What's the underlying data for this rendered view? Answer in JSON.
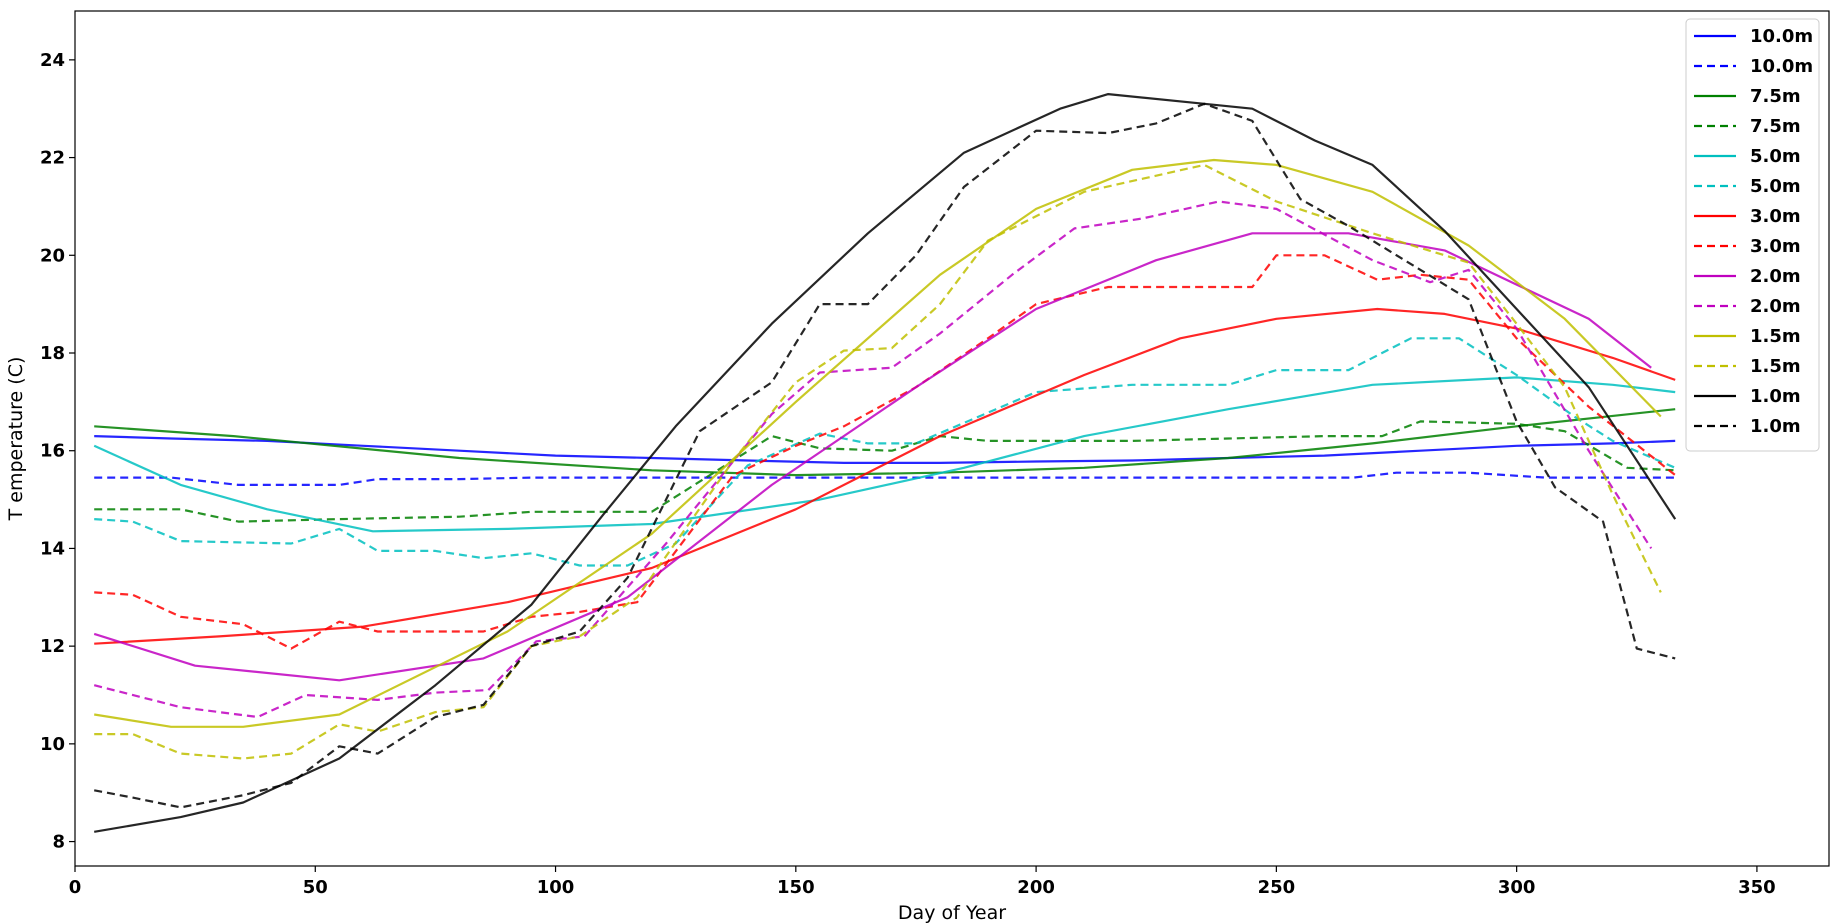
{
  "chart_data": {
    "type": "line",
    "xlabel": "Day of Year",
    "ylabel": "T emperature (C)",
    "xlim": [
      0,
      365
    ],
    "ylim": [
      7.5,
      25
    ],
    "xticks": [
      0,
      50,
      100,
      150,
      200,
      250,
      300,
      350
    ],
    "yticks": [
      8,
      10,
      12,
      14,
      16,
      18,
      20,
      22,
      24
    ],
    "grid": false,
    "legend_position": "top-right",
    "series": [
      {
        "name": "10.0m",
        "color": "#0000ff",
        "style": "solid",
        "x": [
          4,
          20,
          40,
          60,
          80,
          100,
          120,
          140,
          160,
          180,
          200,
          220,
          240,
          260,
          280,
          300,
          320,
          333
        ],
        "y": [
          16.3,
          16.25,
          16.2,
          16.1,
          16.0,
          15.9,
          15.85,
          15.8,
          15.75,
          15.75,
          15.78,
          15.8,
          15.85,
          15.9,
          16.0,
          16.1,
          16.15,
          16.2
        ]
      },
      {
        "name": "10.0m",
        "color": "#0000ff",
        "style": "dashed",
        "x": [
          4,
          20,
          34,
          55,
          63,
          80,
          95,
          120,
          150,
          180,
          210,
          240,
          260,
          266,
          275,
          290,
          306,
          320,
          333
        ],
        "y": [
          15.45,
          15.45,
          15.3,
          15.3,
          15.42,
          15.42,
          15.45,
          15.45,
          15.45,
          15.45,
          15.45,
          15.45,
          15.45,
          15.45,
          15.55,
          15.55,
          15.45,
          15.45,
          15.45
        ]
      },
      {
        "name": "7.5m",
        "color": "#008000",
        "style": "solid",
        "x": [
          4,
          33,
          80,
          120,
          150,
          180,
          210,
          240,
          270,
          300,
          333
        ],
        "y": [
          16.5,
          16.3,
          15.85,
          15.6,
          15.5,
          15.55,
          15.65,
          15.85,
          16.15,
          16.5,
          16.85
        ]
      },
      {
        "name": "7.5m",
        "color": "#008000",
        "style": "dashed",
        "x": [
          4,
          22,
          34,
          55,
          80,
          95,
          120,
          145,
          155,
          170,
          180,
          190,
          220,
          240,
          260,
          272,
          280,
          300,
          310,
          323,
          333
        ],
        "y": [
          14.8,
          14.8,
          14.55,
          14.6,
          14.65,
          14.75,
          14.75,
          16.3,
          16.05,
          16.0,
          16.3,
          16.2,
          16.2,
          16.25,
          16.3,
          16.3,
          16.6,
          16.55,
          16.4,
          15.65,
          15.6
        ]
      },
      {
        "name": "5.0m",
        "color": "#00bfbf",
        "style": "solid",
        "x": [
          4,
          22,
          40,
          62,
          90,
          120,
          155,
          185,
          210,
          240,
          270,
          300,
          320,
          333
        ],
        "y": [
          16.1,
          15.3,
          14.8,
          14.35,
          14.4,
          14.5,
          15.0,
          15.65,
          16.3,
          16.85,
          17.35,
          17.5,
          17.35,
          17.2
        ]
      },
      {
        "name": "5.0m",
        "color": "#00bfbf",
        "style": "dashed",
        "x": [
          4,
          12,
          22,
          45,
          55,
          63,
          75,
          85,
          95,
          105,
          115,
          125,
          140,
          155,
          165,
          175,
          200,
          220,
          240,
          250,
          265,
          278,
          288,
          300,
          312,
          320,
          333
        ],
        "y": [
          14.6,
          14.55,
          14.15,
          14.1,
          14.4,
          13.95,
          13.95,
          13.8,
          13.9,
          13.65,
          13.65,
          14.1,
          15.7,
          16.35,
          16.15,
          16.15,
          17.2,
          17.35,
          17.35,
          17.65,
          17.65,
          18.3,
          18.3,
          17.55,
          16.7,
          16.2,
          15.65
        ]
      },
      {
        "name": "3.0m",
        "color": "#ff0000",
        "style": "solid",
        "x": [
          4,
          30,
          60,
          90,
          120,
          150,
          180,
          210,
          230,
          250,
          271,
          285,
          300,
          320,
          333
        ],
        "y": [
          12.05,
          12.2,
          12.4,
          12.9,
          13.6,
          14.8,
          16.3,
          17.55,
          18.3,
          18.7,
          18.9,
          18.8,
          18.5,
          17.9,
          17.45
        ]
      },
      {
        "name": "3.0m",
        "color": "#ff0000",
        "style": "dashed",
        "x": [
          4,
          12,
          22,
          35,
          45,
          55,
          63,
          75,
          85,
          95,
          105,
          117,
          137,
          150,
          160,
          175,
          190,
          200,
          215,
          225,
          245,
          250,
          260,
          271,
          280,
          290,
          300,
          315,
          333
        ],
        "y": [
          13.1,
          13.05,
          12.6,
          12.45,
          11.95,
          12.5,
          12.3,
          12.3,
          12.3,
          12.6,
          12.7,
          12.9,
          15.5,
          16.1,
          16.5,
          17.3,
          18.3,
          19.0,
          19.35,
          19.35,
          19.35,
          20.0,
          20.0,
          19.5,
          19.6,
          19.5,
          18.3,
          16.9,
          15.5
        ]
      },
      {
        "name": "2.0m",
        "color": "#bf00bf",
        "style": "solid",
        "x": [
          4,
          25,
          55,
          85,
          115,
          145,
          175,
          200,
          225,
          245,
          265,
          285,
          300,
          315,
          328
        ],
        "y": [
          12.25,
          11.6,
          11.3,
          11.75,
          13.0,
          15.3,
          17.3,
          18.9,
          19.9,
          20.45,
          20.45,
          20.1,
          19.4,
          18.7,
          17.7
        ]
      },
      {
        "name": "2.0m",
        "color": "#bf00bf",
        "style": "dashed",
        "x": [
          4,
          22,
          38,
          48,
          63,
          75,
          86,
          96,
          106,
          123,
          145,
          155,
          170,
          180,
          195,
          208,
          222,
          238,
          250,
          270,
          282,
          290,
          300,
          315,
          328
        ],
        "y": [
          11.2,
          10.75,
          10.55,
          11.0,
          10.9,
          11.05,
          11.1,
          12.1,
          12.2,
          14.1,
          16.75,
          17.6,
          17.7,
          18.4,
          19.6,
          20.55,
          20.75,
          21.1,
          20.95,
          19.9,
          19.45,
          19.7,
          18.5,
          16.0,
          14.0
        ]
      },
      {
        "name": "1.5m",
        "color": "#bfbf00",
        "style": "solid",
        "x": [
          4,
          20,
          35,
          55,
          90,
          120,
          150,
          180,
          200,
          220,
          237,
          250,
          270,
          290,
          310,
          330
        ],
        "y": [
          10.6,
          10.35,
          10.35,
          10.6,
          12.3,
          14.3,
          17.0,
          19.6,
          20.95,
          21.75,
          21.95,
          21.85,
          21.3,
          20.2,
          18.7,
          16.7
        ]
      },
      {
        "name": "1.5m",
        "color": "#bfbf00",
        "style": "dashed",
        "x": [
          4,
          12,
          22,
          35,
          45,
          55,
          63,
          75,
          85,
          95,
          105,
          117,
          137,
          150,
          160,
          170,
          180,
          190,
          210,
          235,
          250,
          270,
          290,
          300,
          310,
          320,
          330
        ],
        "y": [
          10.2,
          10.2,
          9.8,
          9.7,
          9.8,
          10.4,
          10.25,
          10.65,
          10.75,
          12.0,
          12.2,
          13.0,
          15.8,
          17.4,
          18.05,
          18.1,
          19.0,
          20.3,
          21.3,
          21.85,
          21.1,
          20.45,
          19.85,
          18.6,
          17.3,
          15.1,
          13.1
        ]
      },
      {
        "name": "1.0m",
        "color": "#000000",
        "style": "solid",
        "x": [
          4,
          22,
          35,
          55,
          75,
          95,
          110,
          125,
          145,
          165,
          185,
          205,
          215,
          235,
          245,
          258,
          270,
          285,
          300,
          315,
          333
        ],
        "y": [
          8.2,
          8.5,
          8.8,
          9.7,
          11.2,
          12.85,
          14.7,
          16.5,
          18.6,
          20.45,
          22.1,
          23.0,
          23.3,
          23.1,
          23.0,
          22.35,
          21.85,
          20.5,
          18.9,
          17.3,
          14.6
        ]
      },
      {
        "name": "1.0m",
        "color": "#000000",
        "style": "dashed",
        "x": [
          4,
          12,
          22,
          35,
          45,
          55,
          63,
          75,
          85,
          95,
          105,
          115,
          130,
          145,
          155,
          165,
          175,
          185,
          200,
          215,
          225,
          235,
          245,
          255,
          265,
          280,
          290,
          300,
          308,
          318,
          325,
          333
        ],
        "y": [
          9.05,
          8.9,
          8.7,
          8.95,
          9.2,
          9.95,
          9.8,
          10.55,
          10.8,
          12.0,
          12.3,
          13.4,
          16.4,
          17.4,
          19.0,
          19.0,
          20.0,
          21.4,
          22.55,
          22.5,
          22.7,
          23.1,
          22.75,
          21.15,
          20.6,
          19.7,
          19.1,
          16.6,
          15.25,
          14.55,
          11.95,
          11.75
        ]
      }
    ]
  }
}
